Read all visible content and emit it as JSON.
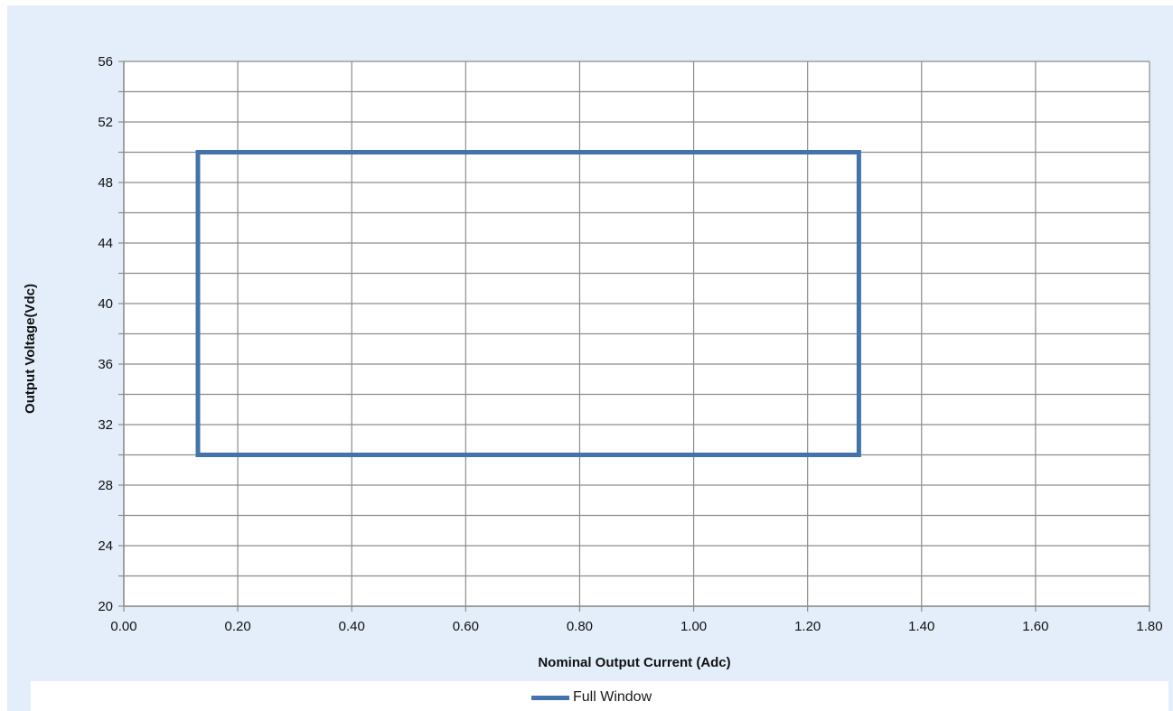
{
  "chart_data": {
    "type": "line",
    "xlabel": "Nominal Output Current (Adc)",
    "ylabel": "Output Voltage(Vdc)",
    "xlim": [
      0,
      1.8
    ],
    "ylim": [
      20,
      56
    ],
    "x_ticks": [
      "0.00",
      "0.20",
      "0.40",
      "0.60",
      "0.80",
      "1.00",
      "1.20",
      "1.40",
      "1.60",
      "1.80"
    ],
    "y_ticks": [
      "20",
      "24",
      "28",
      "32",
      "36",
      "40",
      "44",
      "48",
      "52",
      "56"
    ],
    "grid": true,
    "legend_position": "bottom",
    "series": [
      {
        "name": "Full Window",
        "color": "#4472aa",
        "x": [
          0.13,
          1.29,
          1.29,
          0.13,
          0.13
        ],
        "y": [
          30,
          30,
          50,
          50,
          30
        ]
      }
    ]
  }
}
